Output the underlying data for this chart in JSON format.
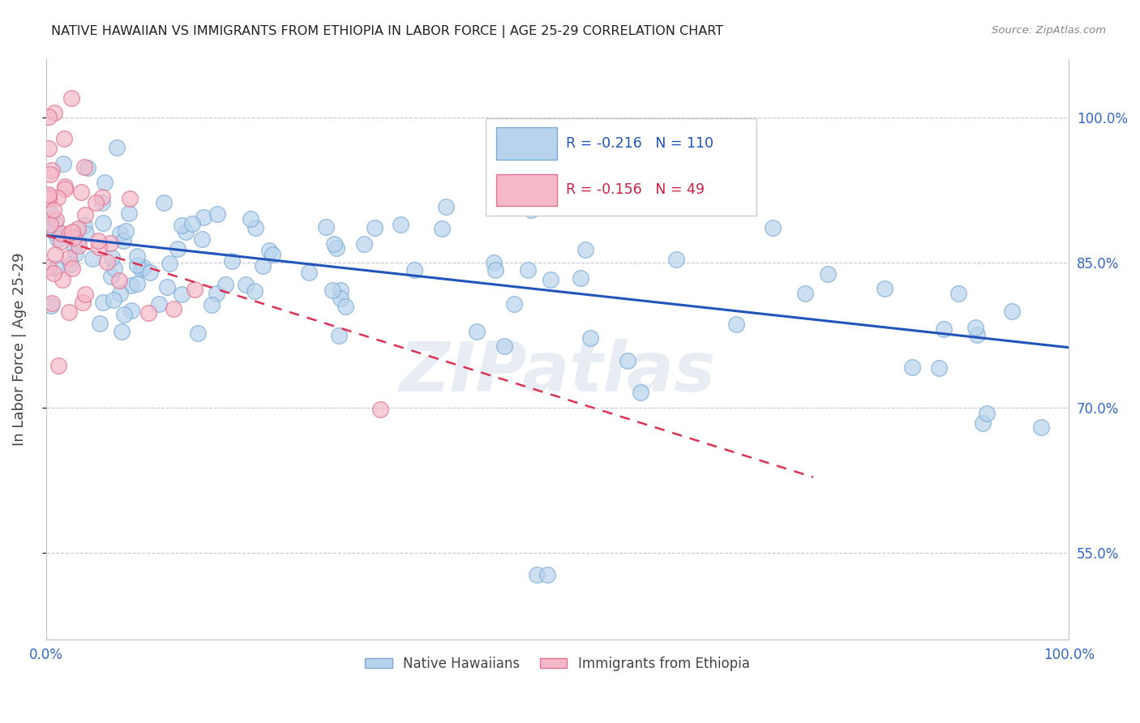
{
  "title": "NATIVE HAWAIIAN VS IMMIGRANTS FROM ETHIOPIA IN LABOR FORCE | AGE 25-29 CORRELATION CHART",
  "source": "Source: ZipAtlas.com",
  "ylabel": "In Labor Force | Age 25-29",
  "xlim": [
    0,
    1.0
  ],
  "ylim": [
    0.46,
    1.06
  ],
  "yticks": [
    0.55,
    0.7,
    0.85,
    1.0
  ],
  "ytick_labels": [
    "55.0%",
    "70.0%",
    "85.0%",
    "100.0%"
  ],
  "xticks": [
    0.0,
    0.2,
    0.4,
    0.6,
    0.8,
    1.0
  ],
  "xtick_labels": [
    "0.0%",
    "",
    "",
    "",
    "",
    "100.0%"
  ],
  "blue_R": -0.216,
  "blue_N": 110,
  "pink_R": -0.156,
  "pink_N": 49,
  "blue_color": "#b8d4ed",
  "blue_edge_color": "#7aabd4",
  "pink_color": "#f5b8c8",
  "pink_edge_color": "#e07090",
  "blue_line_color": "#2255bb",
  "pink_line_color": "#dd3355",
  "legend_blue_label": "Native Hawaiians",
  "legend_pink_label": "Immigrants from Ethiopia",
  "watermark": "ZIPatlas"
}
